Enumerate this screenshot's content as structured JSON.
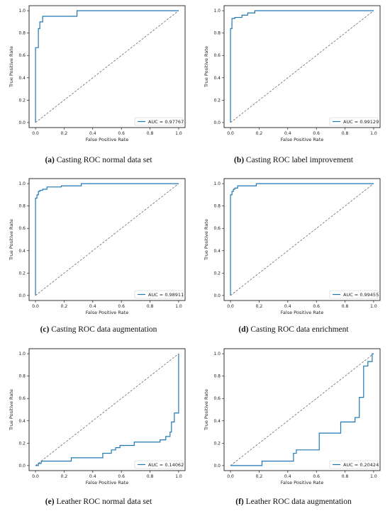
{
  "colors": {
    "roc": "#1f77b4",
    "chance": "#555555",
    "axis": "#000000"
  },
  "xlabel": "False Positive Rate",
  "ylabel": "True Positive Rate",
  "chart_data": [
    {
      "type": "line",
      "caption_letter": "(a)",
      "caption_text": " Casting ROC normal data set",
      "xlabel": "False Positive Rate",
      "ylabel": "True Positive Rate",
      "xlim": [
        0,
        1
      ],
      "ylim": [
        0,
        1
      ],
      "xticks": [
        "0.0",
        "0.2",
        "0.4",
        "0.6",
        "0.8",
        "1.0"
      ],
      "yticks": [
        "0.0",
        "0.2",
        "0.4",
        "0.6",
        "0.8",
        "1.0"
      ],
      "legend_label": "AUC = 0.97767",
      "legend_position": "lower-right",
      "series": [
        {
          "x": [
            0,
            0,
            0.02,
            0.02,
            0.03,
            0.03,
            0.05,
            0.05,
            0.08,
            0.08,
            0.29,
            0.29,
            1.0
          ],
          "y": [
            0,
            0.67,
            0.67,
            0.84,
            0.84,
            0.9,
            0.9,
            0.95,
            0.95,
            0.95,
            0.95,
            1.0,
            1.0
          ]
        }
      ],
      "diagonal": true
    },
    {
      "type": "line",
      "caption_letter": "(b)",
      "caption_text": " Casting ROC label improvement",
      "xlabel": "False Positive Rate",
      "ylabel": "True Positive Rate",
      "xlim": [
        0,
        1
      ],
      "ylim": [
        0,
        1
      ],
      "xticks": [
        "0.0",
        "0.2",
        "0.4",
        "0.6",
        "0.8",
        "1.0"
      ],
      "yticks": [
        "0.0",
        "0.2",
        "0.4",
        "0.6",
        "0.8",
        "1.0"
      ],
      "legend_label": "AUC = 0.99129",
      "legend_position": "lower-right",
      "series": [
        {
          "x": [
            0,
            0,
            0.01,
            0.01,
            0.03,
            0.03,
            0.08,
            0.08,
            0.12,
            0.12,
            0.17,
            0.17,
            1.0
          ],
          "y": [
            0,
            0.84,
            0.84,
            0.93,
            0.93,
            0.94,
            0.94,
            0.96,
            0.96,
            0.98,
            0.98,
            1.0,
            1.0
          ]
        }
      ],
      "diagonal": true
    },
    {
      "type": "line",
      "caption_letter": "(c)",
      "caption_text": " Casting ROC data augmentation",
      "xlabel": "False Positive Rate",
      "ylabel": "True Positive Rate",
      "xlim": [
        0,
        1
      ],
      "ylim": [
        0,
        1
      ],
      "xticks": [
        "0.0",
        "0.2",
        "0.4",
        "0.6",
        "0.8",
        "1.0"
      ],
      "yticks": [
        "0.0",
        "0.2",
        "0.4",
        "0.6",
        "0.8",
        "1.0"
      ],
      "legend_label": "AUC = 0.98911",
      "legend_position": "lower-right",
      "series": [
        {
          "x": [
            0,
            0,
            0.01,
            0.01,
            0.02,
            0.02,
            0.03,
            0.03,
            0.05,
            0.05,
            0.08,
            0.08,
            0.18,
            0.18,
            0.32,
            0.32,
            1.0
          ],
          "y": [
            0,
            0.87,
            0.87,
            0.9,
            0.9,
            0.93,
            0.93,
            0.94,
            0.94,
            0.95,
            0.95,
            0.97,
            0.97,
            0.98,
            0.98,
            1.0,
            1.0
          ]
        }
      ],
      "diagonal": true
    },
    {
      "type": "line",
      "caption_letter": "(d)",
      "caption_text": " Casting ROC data enrichment",
      "xlabel": "False Positive Rate",
      "ylabel": "True Positive Rate",
      "xlim": [
        0,
        1
      ],
      "ylim": [
        0,
        1
      ],
      "xticks": [
        "0.0",
        "0.2",
        "0.4",
        "0.6",
        "0.8",
        "1.0"
      ],
      "yticks": [
        "0.0",
        "0.2",
        "0.4",
        "0.6",
        "0.8",
        "1.0"
      ],
      "legend_label": "AUC = 0.99455",
      "legend_position": "lower-right",
      "series": [
        {
          "x": [
            0,
            0,
            0.01,
            0.01,
            0.02,
            0.02,
            0.03,
            0.03,
            0.05,
            0.05,
            0.18,
            0.18,
            1.0
          ],
          "y": [
            0,
            0.9,
            0.9,
            0.93,
            0.93,
            0.95,
            0.95,
            0.96,
            0.96,
            0.98,
            0.98,
            1.0,
            1.0
          ]
        }
      ],
      "diagonal": true
    },
    {
      "type": "line",
      "caption_letter": "(e)",
      "caption_text": " Leather ROC normal data set",
      "xlabel": "False Positive Rate",
      "ylabel": "True Positive Rate",
      "xlim": [
        0,
        1
      ],
      "ylim": [
        0,
        1
      ],
      "xticks": [
        "0.0",
        "0.2",
        "0.4",
        "0.6",
        "0.8",
        "1.0"
      ],
      "yticks": [
        "0.0",
        "0.2",
        "0.4",
        "0.6",
        "0.8",
        "1.0"
      ],
      "legend_label": "AUC = 0.14062",
      "legend_position": "lower-right",
      "series": [
        {
          "x": [
            0,
            0.02,
            0.02,
            0.04,
            0.04,
            0.25,
            0.25,
            0.47,
            0.47,
            0.53,
            0.53,
            0.56,
            0.56,
            0.59,
            0.59,
            0.69,
            0.69,
            0.87,
            0.87,
            0.91,
            0.91,
            0.94,
            0.94,
            0.95,
            0.95,
            0.97,
            0.97,
            1.0,
            1.0
          ],
          "y": [
            0,
            0,
            0.02,
            0.02,
            0.04,
            0.04,
            0.07,
            0.07,
            0.11,
            0.11,
            0.14,
            0.14,
            0.16,
            0.16,
            0.18,
            0.18,
            0.21,
            0.21,
            0.23,
            0.23,
            0.26,
            0.26,
            0.3,
            0.3,
            0.39,
            0.39,
            0.47,
            0.47,
            1.0
          ]
        }
      ],
      "diagonal": true
    },
    {
      "type": "line",
      "caption_letter": "(f)",
      "caption_text": " Leather ROC data augmentation",
      "xlabel": "False Positive Rate",
      "ylabel": "True Positive Rate",
      "xlim": [
        0,
        1
      ],
      "ylim": [
        0,
        1
      ],
      "xticks": [
        "0.0",
        "0.2",
        "0.4",
        "0.6",
        "0.8",
        "1.0"
      ],
      "yticks": [
        "0.0",
        "0.2",
        "0.4",
        "0.6",
        "0.8",
        "1.0"
      ],
      "legend_label": "AUC = 0.20424",
      "legend_position": "lower-right",
      "series": [
        {
          "x": [
            0,
            0.22,
            0.22,
            0.44,
            0.44,
            0.46,
            0.46,
            0.62,
            0.62,
            0.77,
            0.77,
            0.87,
            0.87,
            0.9,
            0.9,
            0.93,
            0.93,
            0.96,
            0.96,
            0.99,
            0.99,
            1.0
          ],
          "y": [
            0,
            0,
            0.04,
            0.04,
            0.11,
            0.11,
            0.14,
            0.14,
            0.29,
            0.29,
            0.39,
            0.39,
            0.43,
            0.43,
            0.61,
            0.61,
            0.89,
            0.89,
            0.93,
            0.93,
            1.0,
            1.0
          ]
        }
      ],
      "diagonal": true
    }
  ]
}
